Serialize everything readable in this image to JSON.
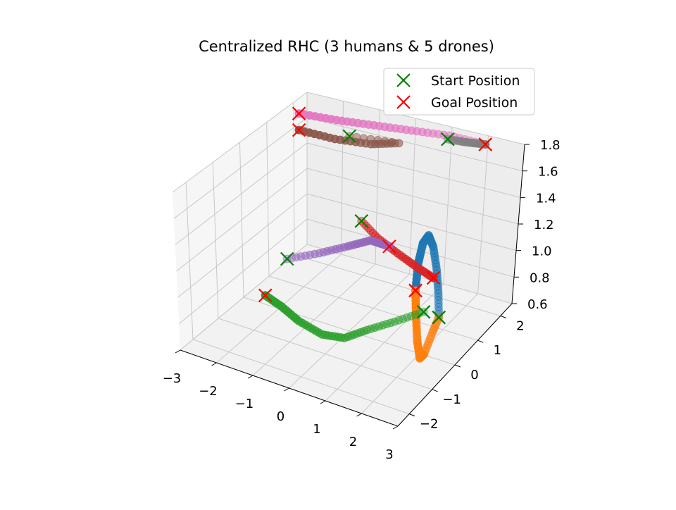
{
  "chart_data": {
    "type": "scatter",
    "title": "Centralized RHC (3 humans & 5 drones)",
    "xlim": [
      -3,
      3
    ],
    "ylim": [
      -2.5,
      2.5
    ],
    "zlim": [
      0.6,
      1.8
    ],
    "x_ticks": [
      "−3",
      "−2",
      "−1",
      "0",
      "1",
      "2",
      "3"
    ],
    "y_ticks": [
      "−2",
      "−1",
      "0",
      "1",
      "2"
    ],
    "z_ticks": [
      "0.6",
      "0.8",
      "1.0",
      "1.2",
      "1.4",
      "1.6",
      "1.8"
    ],
    "grid": true,
    "legend_position": "top-right",
    "legend": [
      {
        "label": "Start Position",
        "color": "#008000",
        "marker": "x"
      },
      {
        "label": "Goal Position",
        "color": "#ff0000",
        "marker": "x"
      }
    ],
    "series": [
      {
        "color": "#1f77b4",
        "start": [
          2.5,
          0,
          0.9
        ],
        "goal": [
          1.7,
          0.2,
          1.0
        ],
        "points": [
          [
            2.5,
            0,
            0.9
          ],
          [
            2.4,
            0.1,
            1.05
          ],
          [
            2.3,
            0.15,
            1.2
          ],
          [
            2.15,
            0.2,
            1.35
          ],
          [
            2.0,
            0.22,
            1.42
          ],
          [
            1.85,
            0.22,
            1.35
          ],
          [
            1.75,
            0.2,
            1.2
          ],
          [
            1.7,
            0.2,
            1.0
          ]
        ]
      },
      {
        "color": "#ff7f0e",
        "start": [
          2.5,
          0,
          0.9
        ],
        "goal": [
          1.7,
          0.2,
          1.0
        ],
        "points": [
          [
            2.5,
            0,
            0.9
          ],
          [
            2.4,
            -0.1,
            0.8
          ],
          [
            2.25,
            -0.2,
            0.65
          ],
          [
            2.1,
            -0.15,
            0.6
          ],
          [
            1.95,
            -0.05,
            0.7
          ],
          [
            1.8,
            0.1,
            0.85
          ],
          [
            1.7,
            0.2,
            1.0
          ]
        ]
      },
      {
        "color": "#2ca02c",
        "start": [
          2.2,
          -0.2,
          0.95
        ],
        "goal": [
          -2.6,
          0.3,
          0.6
        ],
        "points": [
          [
            2.2,
            -0.2,
            0.95
          ],
          [
            1.5,
            -0.35,
            0.85
          ],
          [
            0.8,
            -0.45,
            0.75
          ],
          [
            0.2,
            -0.5,
            0.65
          ],
          [
            -0.5,
            -0.4,
            0.6
          ],
          [
            -1.3,
            -0.2,
            0.6
          ],
          [
            -2.0,
            0.1,
            0.6
          ],
          [
            -2.6,
            0.3,
            0.6
          ]
        ]
      },
      {
        "color": "#d62728",
        "start": [
          -0.8,
          1.6,
          1.1
        ],
        "goal": [
          1.8,
          0.8,
          1.0
        ],
        "points": [
          [
            -0.8,
            1.6,
            1.1
          ],
          [
            -0.2,
            1.4,
            1.05
          ],
          [
            0.5,
            1.2,
            1.02
          ],
          [
            1.2,
            1.0,
            1.0
          ],
          [
            1.8,
            0.8,
            1.0
          ]
        ]
      },
      {
        "color": "#9467bd",
        "start": [
          -2.4,
          0.9,
          0.8
        ],
        "goal": [
          -0.2,
          1.9,
          0.9
        ],
        "points": [
          [
            -2.4,
            0.9,
            0.8
          ],
          [
            -1.7,
            1.2,
            0.85
          ],
          [
            -1.1,
            1.5,
            0.9
          ],
          [
            -0.6,
            1.7,
            0.95
          ],
          [
            -0.2,
            1.9,
            0.9
          ]
        ]
      },
      {
        "color": "#8c564b",
        "start": [
          -1.6,
          2.2,
          1.6
        ],
        "goal": [
          -3.0,
          2.2,
          1.55
        ],
        "points": [
          [
            -1.6,
            2.2,
            1.6
          ],
          [
            -0.3,
            2.3,
            1.62
          ],
          [
            -1.0,
            2.2,
            1.58
          ],
          [
            -2.0,
            2.2,
            1.55
          ],
          [
            -3.0,
            2.2,
            1.55
          ]
        ]
      },
      {
        "color": "#e377c2",
        "start": [
          2.0,
          2.4,
          1.75
        ],
        "goal": [
          -3.0,
          2.2,
          1.68
        ],
        "points": [
          [
            2.0,
            2.4,
            1.75
          ],
          [
            1.0,
            2.4,
            1.75
          ],
          [
            0.0,
            2.35,
            1.73
          ],
          [
            -1.0,
            2.3,
            1.71
          ],
          [
            -2.0,
            2.25,
            1.69
          ],
          [
            -3.0,
            2.2,
            1.68
          ]
        ]
      },
      {
        "color": "#7f7f7f",
        "start": [
          0.9,
          2.5,
          1.7
        ],
        "goal": [
          2.0,
          2.4,
          1.75
        ],
        "points": [
          [
            0.9,
            2.5,
            1.7
          ],
          [
            1.4,
            2.45,
            1.72
          ],
          [
            2.0,
            2.4,
            1.75
          ]
        ]
      }
    ]
  }
}
